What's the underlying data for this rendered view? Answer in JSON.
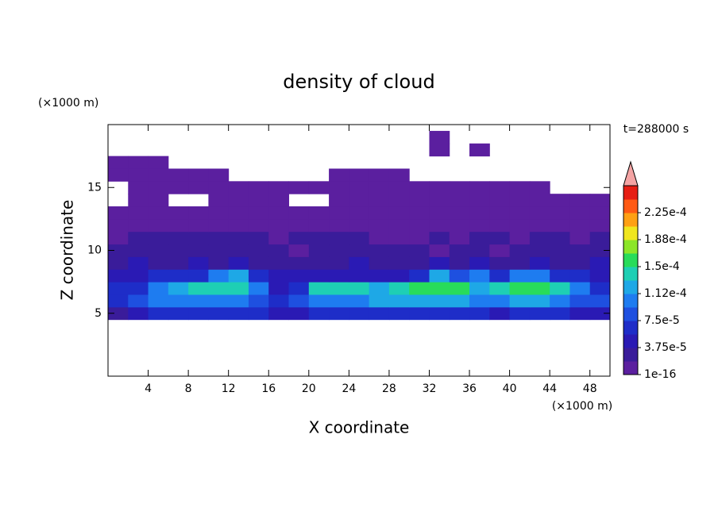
{
  "chart_data": {
    "type": "heatmap",
    "title": "density of cloud",
    "x_label": "X coordinate",
    "y_label": "Z coordinate",
    "x_unit": "(×1000 m)",
    "y_unit": "(×1000 m)",
    "time_label": "t=288000 s",
    "xlim": [
      0,
      50
    ],
    "ylim": [
      0,
      20
    ],
    "xticks": [
      4,
      8,
      12,
      16,
      20,
      24,
      28,
      32,
      36,
      40,
      44,
      48
    ],
    "yticks": [
      5,
      10,
      15
    ],
    "x": [
      1,
      3,
      5,
      7,
      9,
      11,
      13,
      15,
      17,
      19,
      21,
      23,
      25,
      27,
      29,
      31,
      33,
      35,
      37,
      39,
      41,
      43,
      45,
      47,
      49
    ],
    "y": [
      5,
      6,
      7,
      8,
      9,
      10,
      11,
      12,
      13,
      14,
      15,
      16,
      17,
      18,
      19
    ],
    "values": [
      [
        3e-05,
        5e-05,
        6e-05,
        6e-05,
        6e-05,
        6e-05,
        6e-05,
        6e-05,
        5e-05,
        4e-05,
        6e-05,
        6e-05,
        6e-05,
        6e-05,
        6e-05,
        6e-05,
        6e-05,
        6e-05,
        6e-05,
        5e-05,
        6e-05,
        6e-05,
        6e-05,
        5e-05,
        4e-05
      ],
      [
        7e-05,
        9e-05,
        0.000105,
        0.00011,
        0.00011,
        0.00011,
        0.0001,
        9e-05,
        6e-05,
        8e-05,
        0.00011,
        0.00011,
        0.00011,
        0.000115,
        0.000115,
        0.00012,
        0.00012,
        0.000115,
        0.00011,
        0.00011,
        0.00012,
        0.000115,
        0.00011,
        9e-05,
        8e-05
      ],
      [
        6e-05,
        7e-05,
        0.000105,
        0.00013,
        0.000135,
        0.00014,
        0.00014,
        0.0001,
        5e-05,
        7e-05,
        0.00014,
        0.00014,
        0.000135,
        0.00013,
        0.00014,
        0.00015,
        0.00016,
        0.000155,
        0.00013,
        0.000135,
        0.00016,
        0.000165,
        0.00014,
        0.0001,
        7e-05
      ],
      [
        5e-05,
        5e-05,
        6e-05,
        6e-05,
        7e-05,
        0.0001,
        0.00013,
        7e-05,
        5e-05,
        4e-05,
        5e-05,
        5e-05,
        4e-05,
        5e-05,
        5e-05,
        7e-05,
        0.00013,
        8e-05,
        0.0001,
        7e-05,
        0.0001,
        0.0001,
        7e-05,
        6e-05,
        5e-05
      ],
      [
        3e-05,
        4e-05,
        3e-05,
        3e-05,
        4e-05,
        3e-05,
        4e-05,
        3e-05,
        2.5e-05,
        3e-05,
        3e-05,
        3e-05,
        4e-05,
        3e-05,
        3e-05,
        3e-05,
        4e-05,
        3e-05,
        4e-05,
        3e-05,
        3e-05,
        4e-05,
        3e-05,
        3e-05,
        4e-05
      ],
      [
        2e-05,
        2.5e-05,
        2e-05,
        2.5e-05,
        2e-05,
        2e-05,
        2.5e-05,
        2e-05,
        2e-05,
        1.5e-05,
        2e-05,
        2e-05,
        2e-05,
        2e-05,
        2e-05,
        2e-05,
        1.5e-05,
        2e-05,
        2e-05,
        1.5e-05,
        2e-05,
        2e-05,
        2e-05,
        2e-05,
        2.5e-05
      ],
      [
        1e-05,
        2e-05,
        2e-05,
        2e-05,
        2e-05,
        2e-05,
        2e-05,
        2e-05,
        1e-05,
        2e-05,
        2e-05,
        2e-05,
        2e-05,
        1e-05,
        1e-05,
        1e-05,
        2e-05,
        1e-05,
        2e-05,
        2e-05,
        1e-05,
        2e-05,
        2e-05,
        1e-05,
        2e-05
      ],
      [
        8e-06,
        8e-06,
        8e-06,
        8e-06,
        8e-06,
        8e-06,
        8e-06,
        8e-06,
        8e-06,
        8e-06,
        8e-06,
        8e-06,
        8e-06,
        8e-06,
        8e-06,
        8e-06,
        8e-06,
        8e-06,
        8e-06,
        8e-06,
        8e-06,
        8e-06,
        8e-06,
        8e-06,
        8e-06
      ],
      [
        3e-06,
        3e-06,
        3e-06,
        3e-06,
        3e-06,
        3e-06,
        3e-06,
        3e-06,
        3e-06,
        3e-06,
        3e-06,
        3e-06,
        3e-06,
        3e-06,
        3e-06,
        3e-06,
        3e-06,
        3e-06,
        3e-06,
        3e-06,
        3e-06,
        3e-06,
        3e-06,
        3e-06,
        3e-06
      ],
      [
        null,
        2e-06,
        2e-06,
        null,
        null,
        2e-06,
        2e-06,
        2e-06,
        2e-06,
        null,
        null,
        2e-06,
        2e-06,
        2e-06,
        2e-06,
        2e-06,
        2e-06,
        2e-06,
        2e-06,
        2e-06,
        2e-06,
        2e-06,
        2e-06,
        2e-06,
        2e-06
      ],
      [
        null,
        1e-06,
        1e-06,
        1e-06,
        1e-06,
        1e-06,
        1e-06,
        1e-06,
        1e-06,
        1e-06,
        1e-06,
        1e-06,
        1e-06,
        1e-06,
        1e-06,
        1e-06,
        1e-06,
        1e-06,
        1e-06,
        1e-06,
        1e-06,
        1e-06,
        null,
        null,
        null
      ],
      [
        1e-06,
        1e-06,
        1e-06,
        1e-06,
        1e-06,
        1e-06,
        null,
        null,
        null,
        null,
        null,
        1e-06,
        1e-06,
        1e-06,
        1e-06,
        null,
        null,
        null,
        null,
        null,
        null,
        null,
        null,
        null,
        null
      ],
      [
        1e-06,
        1e-06,
        1e-06,
        null,
        null,
        null,
        null,
        null,
        null,
        null,
        null,
        null,
        null,
        null,
        null,
        null,
        null,
        null,
        null,
        null,
        null,
        null,
        null,
        null,
        null
      ],
      [
        null,
        null,
        null,
        null,
        null,
        null,
        null,
        null,
        null,
        null,
        null,
        null,
        null,
        null,
        null,
        null,
        1e-06,
        null,
        1e-06,
        null,
        null,
        null,
        null,
        null,
        null
      ],
      [
        null,
        null,
        null,
        null,
        null,
        null,
        null,
        null,
        null,
        null,
        null,
        null,
        null,
        null,
        null,
        null,
        1e-06,
        null,
        null,
        null,
        null,
        null,
        null,
        null,
        null
      ]
    ],
    "levels": [
      1e-16,
      1.875e-05,
      3.75e-05,
      5.625e-05,
      7.5e-05,
      9.375e-05,
      0.0001125,
      0.00013125,
      0.00015,
      0.00016875,
      0.0001875,
      0.00020625,
      0.000225
    ],
    "colors": [
      "#5b1f9f",
      "#3a1c9a",
      "#2a1ab4",
      "#1e2dc8",
      "#1e50e0",
      "#1e7cf0",
      "#1ea8e6",
      "#1ecfb4",
      "#28dc5a",
      "#8ce628",
      "#f0e61e",
      "#ffa014",
      "#ff5a14",
      "#e61e14"
    ],
    "extend_color": "#f4a4a4",
    "colorbar_ticks": [
      {
        "value": 1e-16,
        "label": "1e-16"
      },
      {
        "value": 3.75e-05,
        "label": "3.75e-5"
      },
      {
        "value": 7.5e-05,
        "label": "7.5e-5"
      },
      {
        "value": 0.0001125,
        "label": "1.12e-4"
      },
      {
        "value": 0.00015,
        "label": "1.5e-4"
      },
      {
        "value": 0.0001875,
        "label": "1.88e-4"
      },
      {
        "value": 0.000225,
        "label": "2.25e-4"
      }
    ]
  }
}
